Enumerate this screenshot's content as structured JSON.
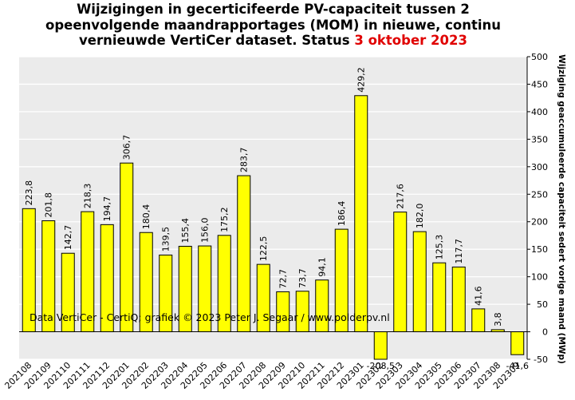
{
  "title": {
    "line1": "Wijzigingen  in gecerticifeerde PV-capaciteit tussen 2",
    "line2": "opeenvolgende maandrapportages (MOM) in nieuwe, continu",
    "line3_main": "vernieuwde VertiCer dataset. Status ",
    "line3_accent": "3 oktober 2023"
  },
  "credit": "Data VertiCer - CertiQ; grafiek © 2023 Peter J. Segaar / www.polderpv.nl",
  "colors": {
    "bar": "#ffff00",
    "plot_bg": "#ebebeb",
    "grid": "#ffffff",
    "accent": "#e00000"
  },
  "chart_data": {
    "type": "bar",
    "categories": [
      "202108",
      "202109",
      "202110",
      "202111",
      "202112",
      "202201",
      "202202",
      "202203",
      "202204",
      "202205",
      "202206",
      "202207",
      "202208",
      "202209",
      "202210",
      "202211",
      "202212",
      "202301",
      "202302",
      "202303",
      "202304",
      "202305",
      "202306",
      "202307",
      "202308",
      "202309"
    ],
    "values": [
      223.8,
      201.8,
      142.7,
      218.3,
      194.7,
      306.7,
      180.4,
      139.5,
      155.4,
      156.0,
      175.2,
      283.7,
      122.5,
      72.7,
      73.7,
      94.1,
      186.4,
      429.2,
      -208.5,
      217.6,
      182.0,
      125.3,
      117.7,
      41.6,
      3.8,
      -41.6
    ],
    "value_labels": [
      "223,8",
      "201,8",
      "142,7",
      "218,3",
      "194,7",
      "306,7",
      "180,4",
      "139,5",
      "155,4",
      "156,0",
      "175,2",
      "283,7",
      "122,5",
      "72,7",
      "73,7",
      "94,1",
      "186,4",
      "429,2",
      "-208,5",
      "217,6",
      "182,0",
      "125,3",
      "117,7",
      "41,6",
      "3,8",
      "-41,6"
    ],
    "ylabel": "Wijziging geaccumuleerde capaciteit sedert vorige maand (MWp)",
    "ylim": [
      -50,
      500
    ],
    "yticks": [
      "-50",
      "0",
      "50",
      "100",
      "150",
      "200",
      "250",
      "300",
      "350",
      "400",
      "450",
      "500"
    ],
    "ytick_values": [
      -50,
      0,
      50,
      100,
      150,
      200,
      250,
      300,
      350,
      400,
      450,
      500
    ],
    "grid": true,
    "y_axis_side": "right"
  }
}
